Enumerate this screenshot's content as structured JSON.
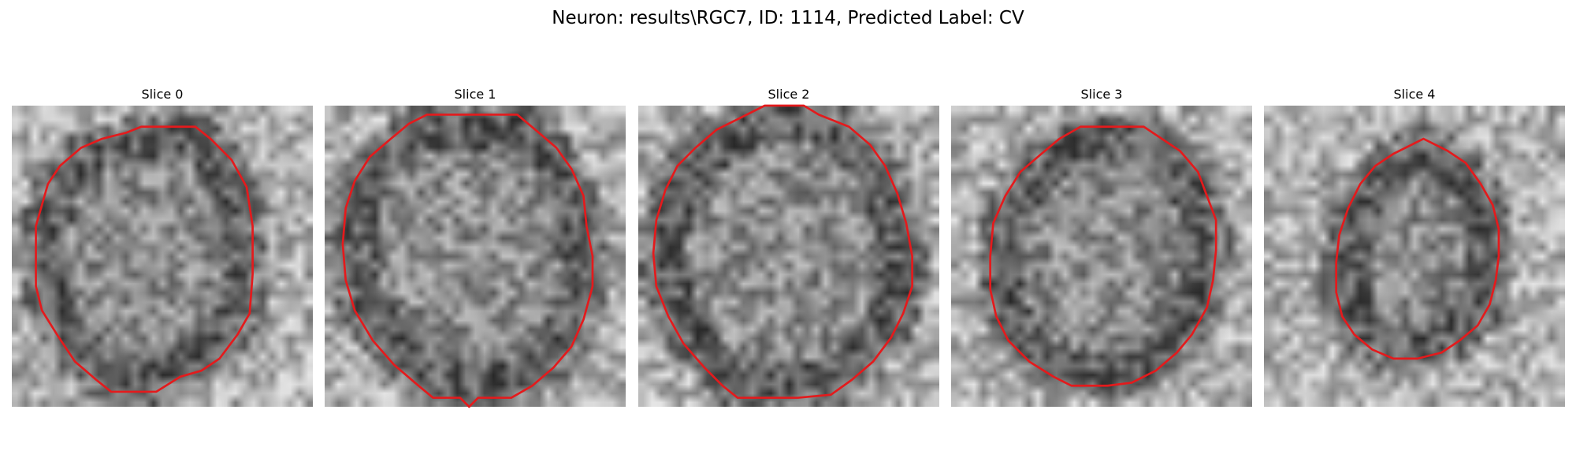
{
  "figure": {
    "title": "Neuron: results\\RGC7, ID: 1114, Predicted Label: CV"
  },
  "panels": [
    {
      "title": "Slice 0",
      "outline": [
        [
          4.3,
          0.7
        ],
        [
          6.1,
          0.7
        ],
        [
          6.6,
          1.1
        ],
        [
          7.3,
          1.8
        ],
        [
          7.8,
          2.7
        ],
        [
          8.0,
          4.0
        ],
        [
          8.0,
          5.6
        ],
        [
          7.9,
          6.9
        ],
        [
          7.5,
          7.6
        ],
        [
          6.9,
          8.4
        ],
        [
          6.3,
          8.8
        ],
        [
          5.6,
          9.0
        ],
        [
          4.8,
          9.5
        ],
        [
          3.3,
          9.5
        ],
        [
          2.8,
          9.1
        ],
        [
          2.1,
          8.5
        ],
        [
          1.5,
          7.6
        ],
        [
          1.0,
          6.8
        ],
        [
          0.8,
          6.0
        ],
        [
          0.8,
          4.0
        ],
        [
          1.0,
          3.3
        ],
        [
          1.2,
          2.6
        ],
        [
          1.6,
          2.0
        ],
        [
          2.3,
          1.4
        ],
        [
          3.0,
          1.1
        ],
        [
          3.8,
          0.9
        ]
      ]
    },
    {
      "title": "Slice 1",
      "outline": [
        [
          3.4,
          0.3
        ],
        [
          6.4,
          0.3
        ],
        [
          7.0,
          0.8
        ],
        [
          7.7,
          1.4
        ],
        [
          8.2,
          2.1
        ],
        [
          8.6,
          3.0
        ],
        [
          8.7,
          4.0
        ],
        [
          8.9,
          5.0
        ],
        [
          8.9,
          6.0
        ],
        [
          8.6,
          7.1
        ],
        [
          8.2,
          8.0
        ],
        [
          7.6,
          8.7
        ],
        [
          6.9,
          9.3
        ],
        [
          6.2,
          9.7
        ],
        [
          5.1,
          9.7
        ],
        [
          4.8,
          10.0
        ],
        [
          4.5,
          9.7
        ],
        [
          3.6,
          9.7
        ],
        [
          3.0,
          9.2
        ],
        [
          2.3,
          8.6
        ],
        [
          1.6,
          7.8
        ],
        [
          1.0,
          6.8
        ],
        [
          0.7,
          5.8
        ],
        [
          0.6,
          4.6
        ],
        [
          0.7,
          3.4
        ],
        [
          1.0,
          2.5
        ],
        [
          1.5,
          1.7
        ],
        [
          2.2,
          1.1
        ],
        [
          2.8,
          0.6
        ]
      ]
    },
    {
      "title": "Slice 2",
      "outline": [
        [
          4.2,
          0.0
        ],
        [
          5.5,
          0.0
        ],
        [
          6.0,
          0.3
        ],
        [
          7.0,
          0.7
        ],
        [
          7.7,
          1.3
        ],
        [
          8.2,
          2.0
        ],
        [
          8.6,
          2.9
        ],
        [
          8.9,
          3.9
        ],
        [
          9.1,
          5.0
        ],
        [
          9.1,
          6.0
        ],
        [
          8.8,
          6.9
        ],
        [
          8.4,
          7.7
        ],
        [
          7.8,
          8.5
        ],
        [
          7.1,
          9.1
        ],
        [
          6.4,
          9.6
        ],
        [
          5.3,
          9.7
        ],
        [
          4.5,
          9.7
        ],
        [
          3.3,
          9.7
        ],
        [
          2.8,
          9.3
        ],
        [
          2.2,
          8.7
        ],
        [
          1.5,
          7.9
        ],
        [
          1.0,
          7.0
        ],
        [
          0.6,
          6.0
        ],
        [
          0.5,
          4.9
        ],
        [
          0.6,
          3.8
        ],
        [
          0.9,
          2.8
        ],
        [
          1.3,
          2.0
        ],
        [
          1.9,
          1.4
        ],
        [
          2.6,
          0.8
        ],
        [
          3.4,
          0.4
        ]
      ]
    },
    {
      "title": "Slice 3",
      "outline": [
        [
          4.3,
          0.7
        ],
        [
          6.4,
          0.7
        ],
        [
          7.0,
          1.1
        ],
        [
          7.6,
          1.5
        ],
        [
          8.2,
          2.2
        ],
        [
          8.5,
          3.0
        ],
        [
          8.8,
          3.8
        ],
        [
          8.8,
          4.8
        ],
        [
          8.7,
          5.8
        ],
        [
          8.5,
          6.7
        ],
        [
          8.0,
          7.6
        ],
        [
          7.5,
          8.2
        ],
        [
          6.8,
          8.8
        ],
        [
          6.0,
          9.2
        ],
        [
          5.2,
          9.3
        ],
        [
          4.0,
          9.3
        ],
        [
          3.4,
          9.0
        ],
        [
          2.6,
          8.5
        ],
        [
          1.9,
          7.8
        ],
        [
          1.5,
          7.0
        ],
        [
          1.3,
          6.1
        ],
        [
          1.3,
          5.0
        ],
        [
          1.4,
          3.9
        ],
        [
          1.8,
          3.0
        ],
        [
          2.3,
          2.2
        ],
        [
          3.0,
          1.6
        ],
        [
          3.6,
          1.1
        ]
      ]
    },
    {
      "title": "Slice 4",
      "outline": [
        [
          5.3,
          1.1
        ],
        [
          6.1,
          1.5
        ],
        [
          6.7,
          1.9
        ],
        [
          7.2,
          2.6
        ],
        [
          7.6,
          3.3
        ],
        [
          7.8,
          4.1
        ],
        [
          7.8,
          5.0
        ],
        [
          7.7,
          5.8
        ],
        [
          7.5,
          6.6
        ],
        [
          7.1,
          7.3
        ],
        [
          6.5,
          7.8
        ],
        [
          5.9,
          8.2
        ],
        [
          5.1,
          8.4
        ],
        [
          4.3,
          8.4
        ],
        [
          3.6,
          8.1
        ],
        [
          3.0,
          7.6
        ],
        [
          2.6,
          7.0
        ],
        [
          2.4,
          6.2
        ],
        [
          2.4,
          5.2
        ],
        [
          2.5,
          4.3
        ],
        [
          2.8,
          3.4
        ],
        [
          3.2,
          2.6
        ],
        [
          3.7,
          2.0
        ],
        [
          4.3,
          1.6
        ],
        [
          4.9,
          1.3
        ]
      ]
    }
  ],
  "colors": {
    "outline": "#e41a1c"
  }
}
